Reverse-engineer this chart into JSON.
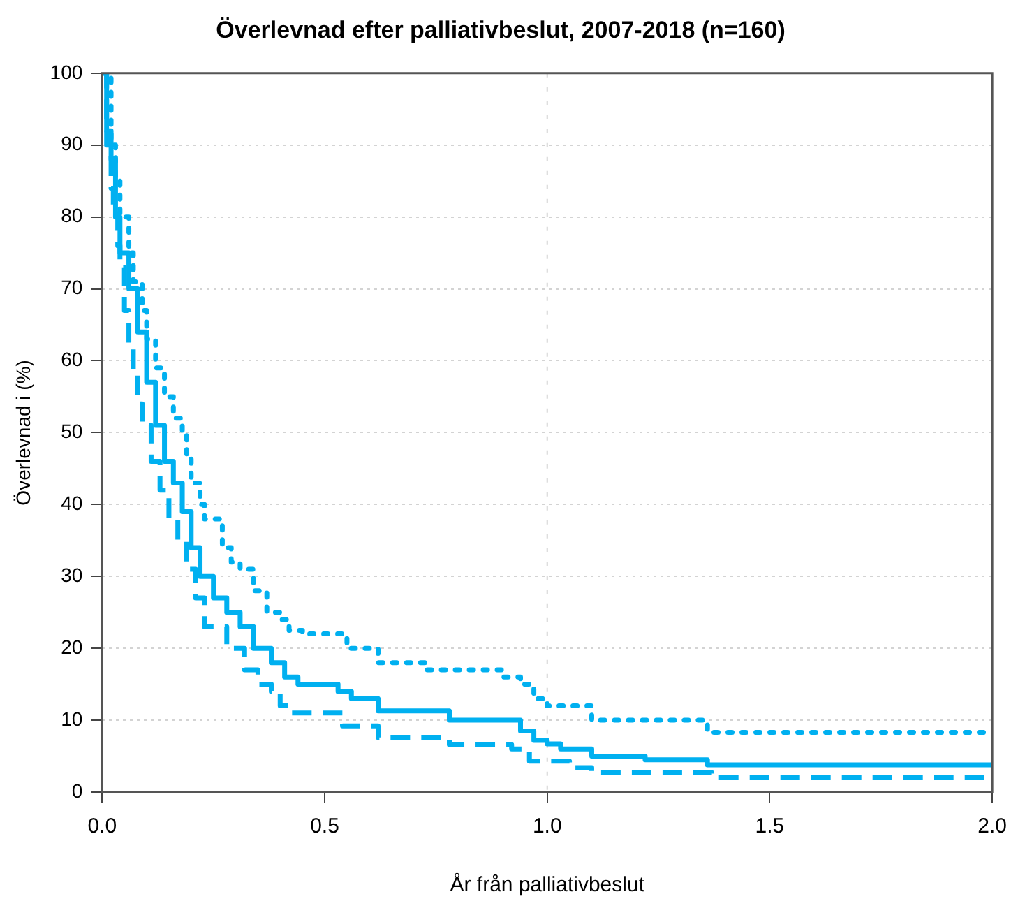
{
  "chart_data": {
    "type": "step",
    "title": "Överlevnad efter palliativbeslut, 2007-2018 (n=160)",
    "xlabel": "År från palliativbeslut",
    "ylabel": "Överlevnad i (%)",
    "xlim": [
      0,
      2
    ],
    "xticks": [
      {
        "value": 0,
        "label": "0.0"
      },
      0.5,
      {
        "value": 1,
        "label": "1.0"
      },
      1.5,
      {
        "value": 2,
        "label": "2.0"
      }
    ],
    "ylim": [
      0,
      100
    ],
    "yticks": [
      0,
      10,
      20,
      30,
      40,
      50,
      60,
      70,
      80,
      90,
      100
    ],
    "grid": "y",
    "legend": false,
    "ref_lines": [
      {
        "axis": "x",
        "value": 1,
        "color": "#d3d3d3",
        "line_style": "dotted"
      }
    ],
    "series": [
      {
        "color": "#00b0f0",
        "line_style": "solid",
        "x": [
          0,
          0.01,
          0.02,
          0.03,
          0.04,
          0.06,
          0.08,
          0.1,
          0.12,
          0.14,
          0.16,
          0.18,
          0.2,
          0.22,
          0.25,
          0.28,
          0.31,
          0.34,
          0.38,
          0.41,
          0.44,
          0.53,
          0.56,
          0.62,
          0.78,
          0.94,
          0.97,
          1.0,
          1.03,
          1.1,
          1.22,
          1.36,
          2.0
        ],
        "values": [
          100,
          92,
          88,
          80,
          75,
          70,
          64,
          57,
          51,
          46,
          43,
          39,
          34,
          30,
          27,
          25,
          23,
          20,
          18,
          16,
          15,
          14,
          13,
          11.3,
          10,
          8.5,
          7.2,
          6.7,
          6,
          5,
          4.5,
          3.8,
          3.8
        ]
      },
      {
        "color": "#00b0f0",
        "line_style": "dotted",
        "x": [
          0,
          0.02,
          0.03,
          0.04,
          0.06,
          0.07,
          0.09,
          0.1,
          0.12,
          0.14,
          0.16,
          0.18,
          0.19,
          0.2,
          0.22,
          0.23,
          0.27,
          0.29,
          0.31,
          0.34,
          0.37,
          0.4,
          0.42,
          0.45,
          0.55,
          0.62,
          0.73,
          0.9,
          0.94,
          0.97,
          1.0,
          1.1,
          1.36,
          2.0
        ],
        "values": [
          100,
          90,
          85,
          80,
          75,
          71,
          67,
          63,
          59,
          55,
          52,
          50,
          47,
          43,
          40,
          38,
          34,
          32,
          31,
          28,
          25,
          24,
          22.5,
          22,
          20,
          18,
          17,
          16,
          15,
          13,
          12,
          10,
          8.3,
          8.3
        ]
      },
      {
        "color": "#00b0f0",
        "line_style": "dashed",
        "x": [
          0,
          0.01,
          0.02,
          0.025,
          0.035,
          0.04,
          0.05,
          0.06,
          0.07,
          0.08,
          0.09,
          0.11,
          0.13,
          0.15,
          0.17,
          0.19,
          0.21,
          0.23,
          0.28,
          0.32,
          0.35,
          0.38,
          0.4,
          0.42,
          0.54,
          0.62,
          0.78,
          0.92,
          0.96,
          1.05,
          1.1,
          1.37,
          2.0
        ],
        "values": [
          100,
          90,
          84,
          81,
          76,
          73,
          67,
          62,
          58,
          54,
          51,
          46,
          42,
          38,
          35,
          31,
          27,
          23,
          20,
          17,
          15,
          14,
          12,
          11,
          9.2,
          7.6,
          6.6,
          6,
          4.3,
          3.4,
          2.7,
          2,
          2
        ]
      }
    ]
  }
}
